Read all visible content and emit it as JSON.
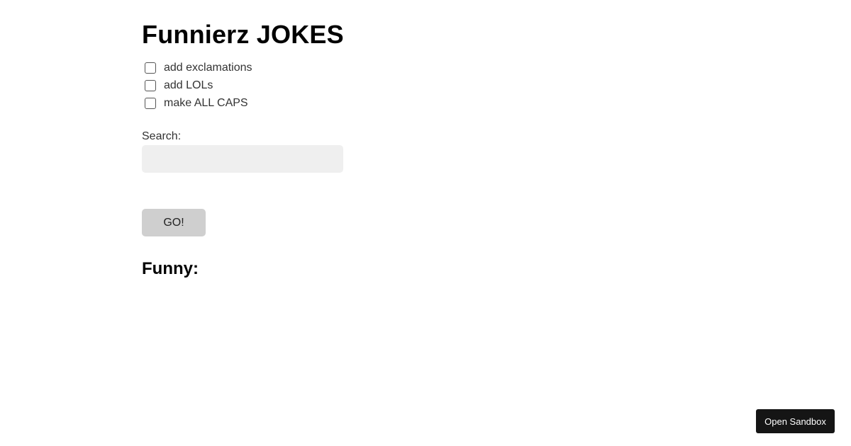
{
  "title": "Funnierz JOKES",
  "options": [
    {
      "label": "add exclamations",
      "checked": false
    },
    {
      "label": "add LOLs",
      "checked": false
    },
    {
      "label": "make ALL CAPS",
      "checked": false
    }
  ],
  "search": {
    "label": "Search:",
    "value": "",
    "placeholder": ""
  },
  "go_label": "GO!",
  "results_heading": "Funny:",
  "sandbox_label": "Open Sandbox"
}
